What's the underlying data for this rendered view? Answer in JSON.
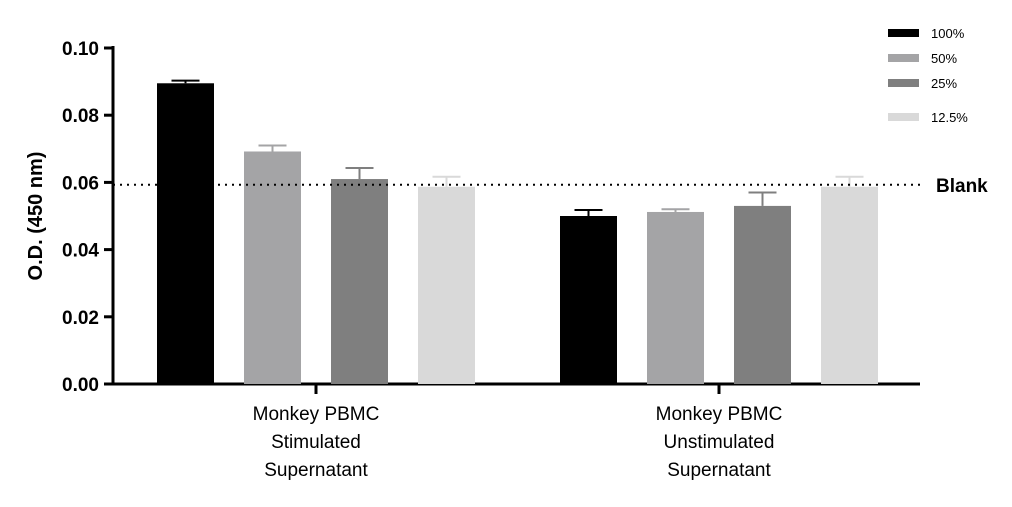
{
  "chart_data": {
    "type": "bar",
    "title": "",
    "xlabel": "",
    "ylabel": "O.D. (450 nm)",
    "ylim": [
      0,
      0.1
    ],
    "yticks": [
      "0.00",
      "0.02",
      "0.04",
      "0.06",
      "0.08",
      "0.10"
    ],
    "grid": false,
    "legend_position": "top-right",
    "categories": [
      [
        "Monkey PBMC",
        "Stimulated",
        "Supernatant"
      ],
      [
        "Monkey PBMC",
        "Unstimulated",
        "Supernatant"
      ]
    ],
    "series": [
      {
        "name": "100%",
        "color": "#000000",
        "values": [
          0.0895,
          0.05
        ],
        "errors": [
          0.0008,
          0.0018
        ]
      },
      {
        "name": "50%",
        "color": "#a4a4a6",
        "values": [
          0.0692,
          0.0512
        ],
        "errors": [
          0.0018,
          0.0008
        ]
      },
      {
        "name": "25%",
        "color": "#7f7f7f",
        "values": [
          0.061,
          0.053
        ],
        "errors": [
          0.0033,
          0.004
        ]
      },
      {
        "name": "12.5%",
        "color": "#d9d9d9",
        "values": [
          0.0587,
          0.0587
        ],
        "errors": [
          0.003,
          0.003
        ]
      }
    ],
    "reference_line": {
      "label": "Blank",
      "value": 0.0593,
      "style": "dotted"
    }
  }
}
